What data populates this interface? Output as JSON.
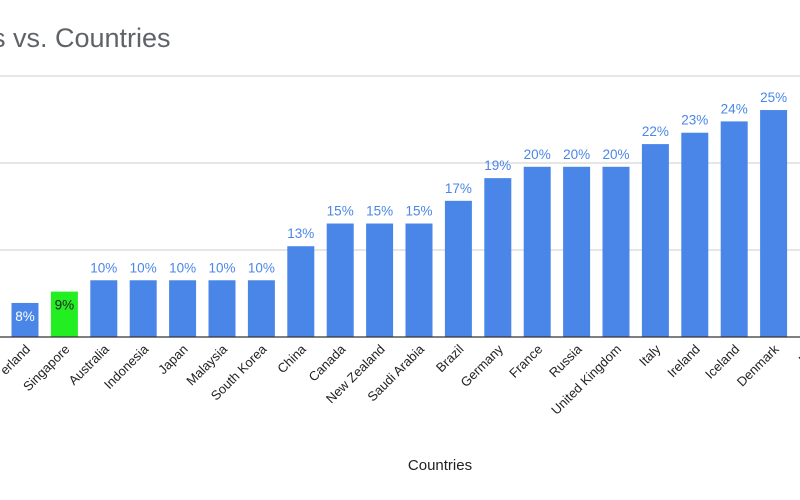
{
  "chart_data": {
    "type": "bar",
    "title": "s vs. Countries",
    "xlabel": "Countries",
    "ylabel": "",
    "categories": [
      "erland",
      "Singapore",
      "Australia",
      "Indonesia",
      "Japan",
      "Malaysia",
      "South Korea",
      "China",
      "Canada",
      "New Zealand",
      "Saudi Arabia",
      "Brazil",
      "Germany",
      "France",
      "Russia",
      "United Kingdom",
      "Italy",
      "Ireland",
      "Iceland",
      "Denmark",
      "Nor"
    ],
    "values": [
      8,
      9,
      10,
      10,
      10,
      10,
      10,
      13,
      15,
      15,
      15,
      17,
      19,
      20,
      20,
      20,
      22,
      23,
      24,
      25,
      null
    ],
    "data_labels": [
      "8%",
      "9%",
      "10%",
      "10%",
      "10%",
      "10%",
      "10%",
      "13%",
      "15%",
      "15%",
      "15%",
      "17%",
      "19%",
      "20%",
      "20%",
      "20%",
      "22%",
      "23%",
      "24%",
      "25%",
      ""
    ],
    "highlight_index": 1,
    "ylim": [
      5,
      28
    ],
    "grid": true,
    "colors": {
      "bar": "#4a86e8",
      "highlight": "#22ee22",
      "label": "#4a86e8",
      "label_inside": "#ffffff",
      "label_highlight": "#222222"
    }
  }
}
